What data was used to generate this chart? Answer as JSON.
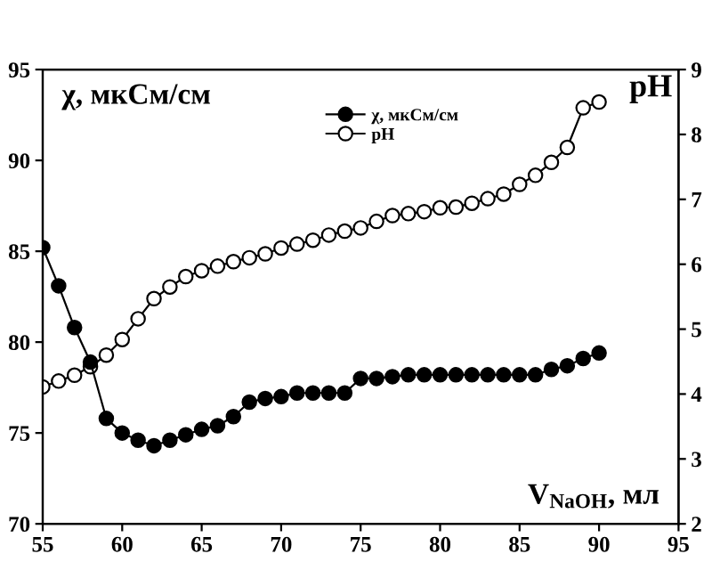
{
  "chart_data": {
    "type": "line",
    "xlabel": "V$_{NaOH}$, мл",
    "ylabel": "χ, мкСм/см",
    "y2label": "pH",
    "x": [
      55,
      56,
      57,
      58,
      59,
      60,
      61,
      62,
      63,
      64,
      65,
      66,
      67,
      68,
      69,
      70,
      71,
      72,
      73,
      74,
      75,
      76,
      77,
      78,
      79,
      80,
      81,
      82,
      83,
      84,
      85,
      86,
      87,
      88,
      89,
      90
    ],
    "series": [
      {
        "name": "χ, мкСм/см",
        "color": "#000000",
        "marker": "circle",
        "values": [
          85.2,
          83.1,
          80.8,
          78.9,
          75.8,
          75.0,
          74.6,
          74.3,
          74.6,
          74.9,
          75.2,
          75.4,
          75.9,
          76.7,
          76.9,
          77.0,
          77.2,
          77.2,
          77.2,
          77.2,
          78.0,
          78.0,
          78.1,
          78.2,
          78.2,
          78.2,
          78.2,
          78.2,
          78.2,
          78.2,
          78.2,
          78.2,
          78.5,
          78.7,
          79.1,
          79.4
        ]
      },
      {
        "name": "pH",
        "color": "#000000",
        "marker": "circle",
        "axis": "y2",
        "values": [
          4.11,
          4.2,
          4.29,
          4.42,
          4.6,
          4.84,
          5.16,
          5.47,
          5.65,
          5.81,
          5.9,
          5.97,
          6.04,
          6.1,
          6.16,
          6.25,
          6.31,
          6.37,
          6.45,
          6.51,
          6.56,
          6.66,
          6.75,
          6.78,
          6.81,
          6.87,
          6.88,
          6.94,
          7.01,
          7.08,
          7.23,
          7.37,
          7.57,
          7.8,
          8.41,
          8.5
        ]
      }
    ],
    "xlim": [
      55,
      95
    ],
    "xticks": [
      55,
      60,
      65,
      70,
      75,
      80,
      85,
      90,
      95
    ],
    "ylim": [
      70,
      95
    ],
    "yticks": [
      70,
      75,
      80,
      85,
      90,
      95
    ],
    "y2lim": [
      2,
      9
    ],
    "y2ticks": [
      2,
      3,
      4,
      5,
      6,
      7,
      8,
      9
    ],
    "grid": false,
    "legend": "top",
    "line_style": "solid"
  }
}
